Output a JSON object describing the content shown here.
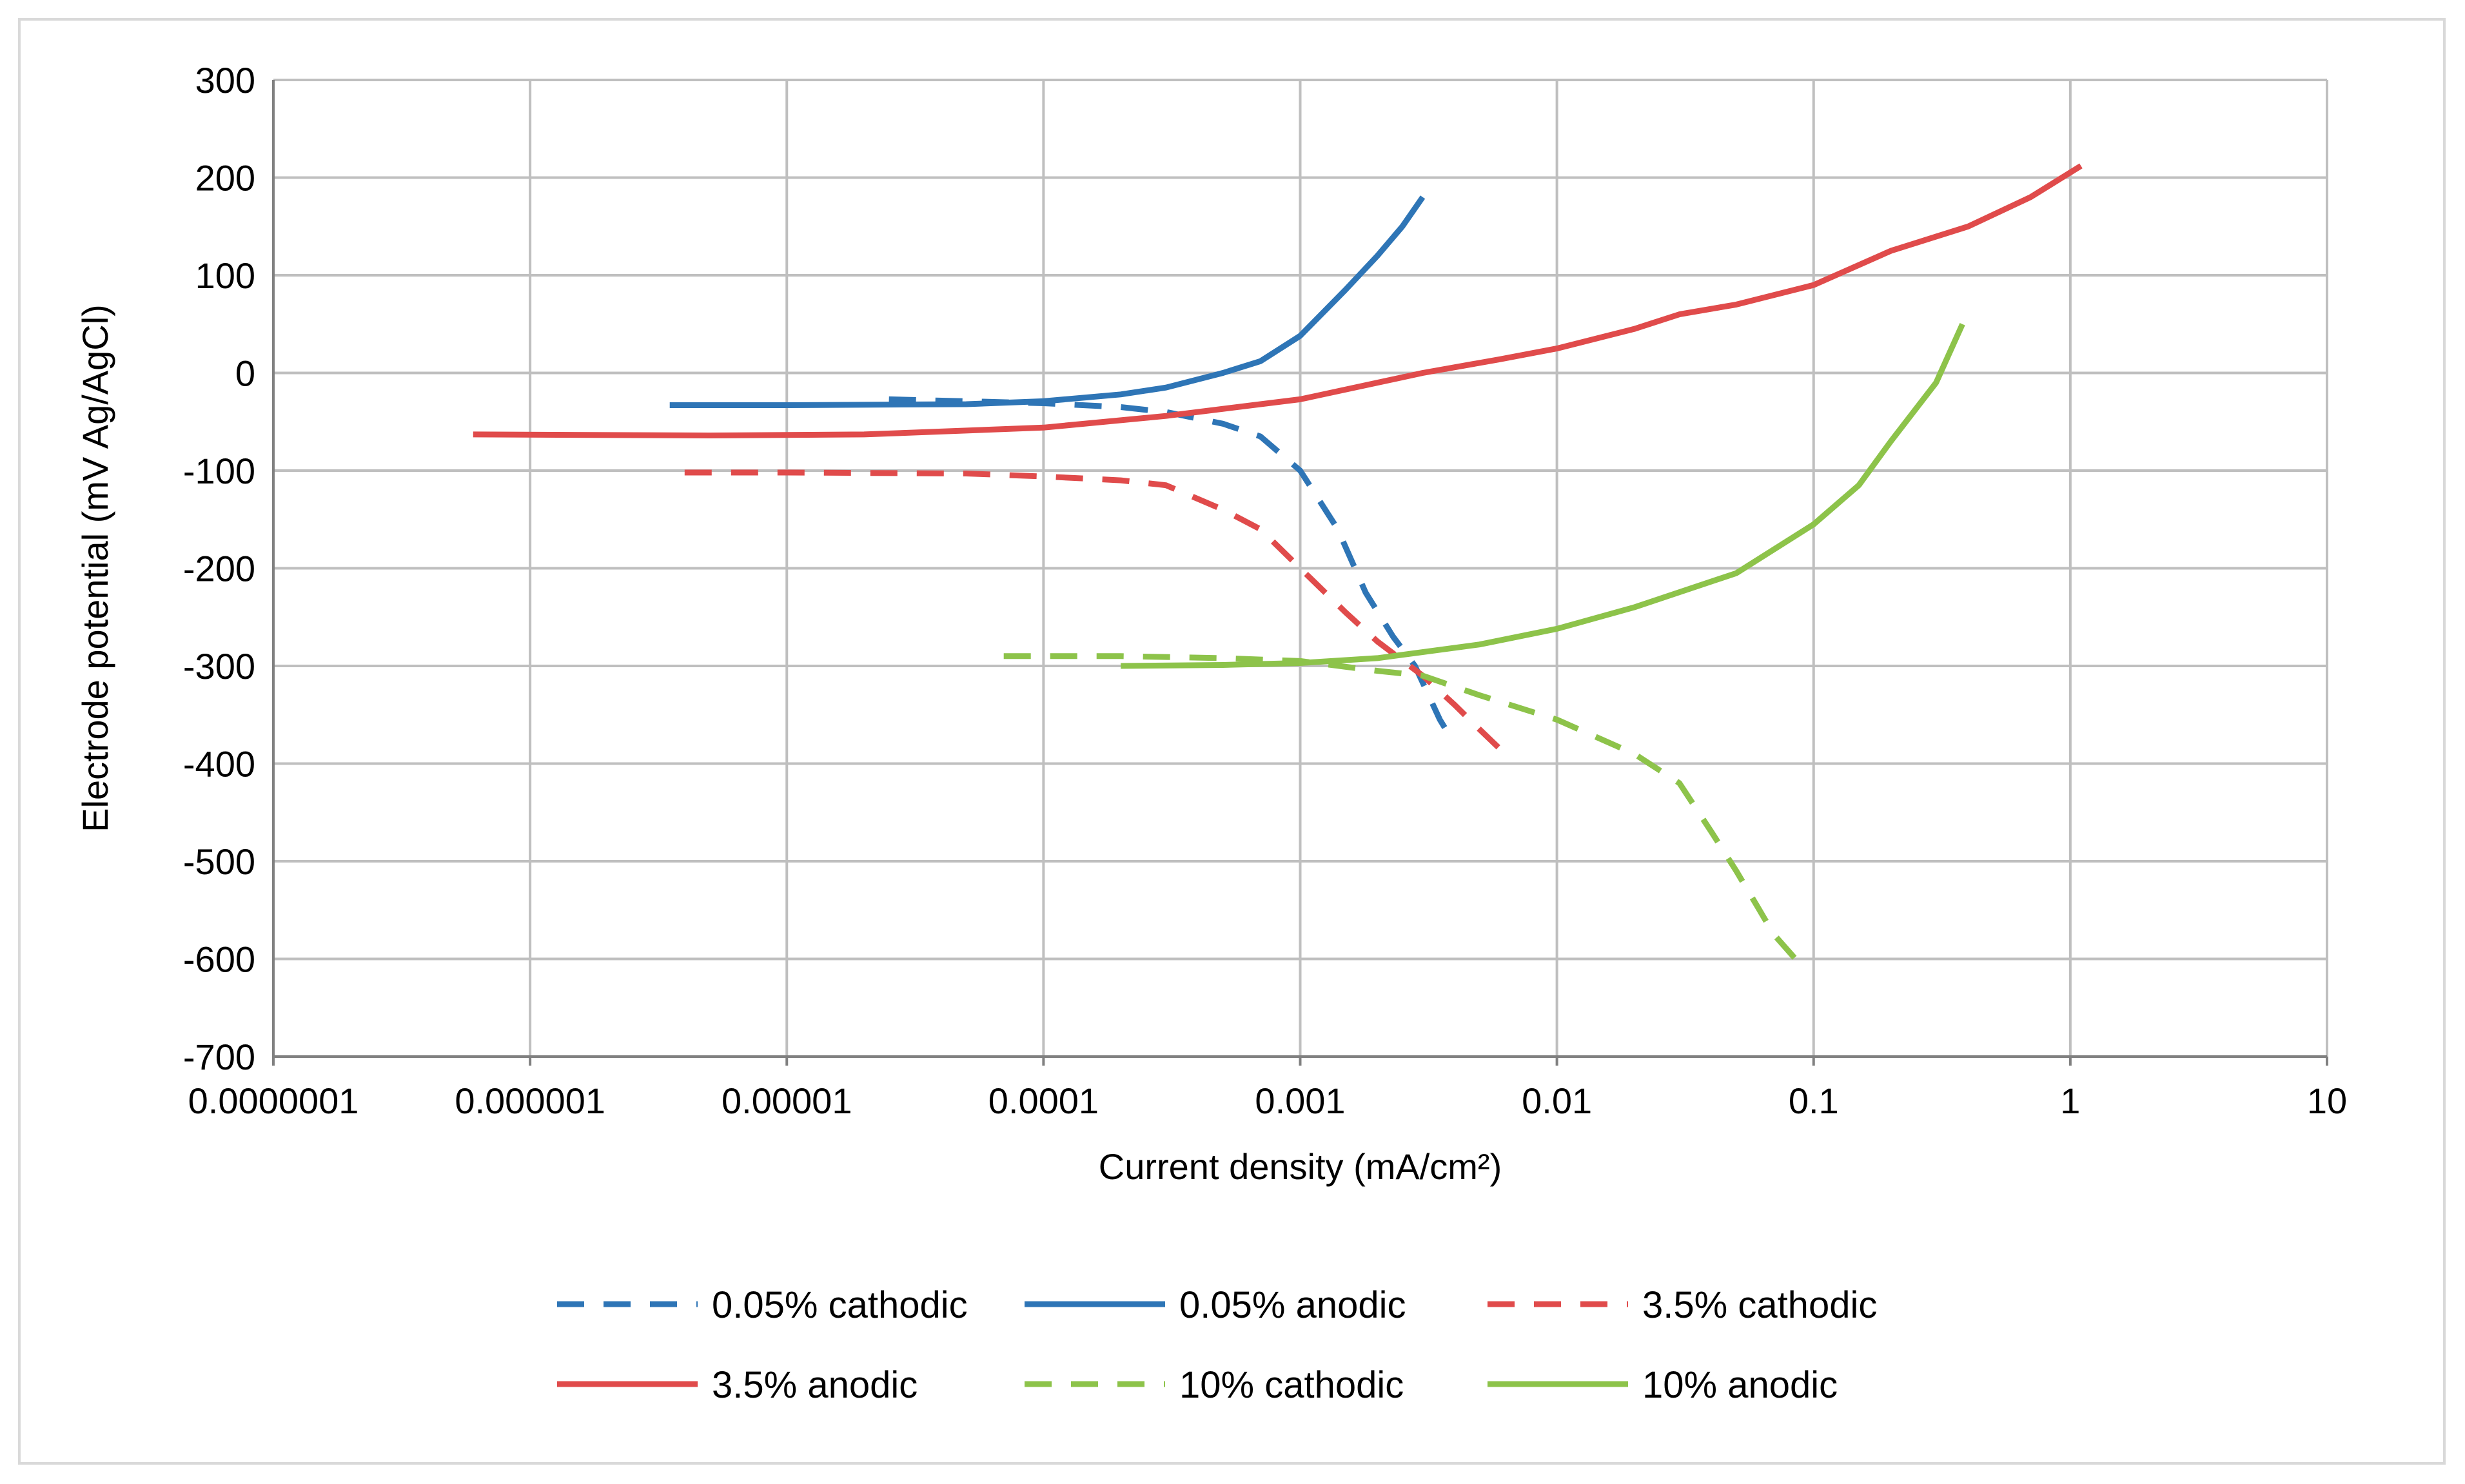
{
  "chart_data": {
    "type": "line",
    "title": "",
    "xlabel": "Current density  (mA/cm²)",
    "ylabel": "Electrode potential  (mV Ag/AgCl)",
    "x_scale": "log",
    "xlim": [
      1e-07,
      10
    ],
    "ylim": [
      -700,
      300
    ],
    "grid": true,
    "legend_position": "bottom",
    "x_tick_labels": [
      "0.0000001",
      "0.000001",
      "0.00001",
      "0.0001",
      "0.001",
      "0.01",
      "0.1",
      "1",
      "10"
    ],
    "y_ticks": [
      300,
      200,
      100,
      0,
      -100,
      -200,
      -300,
      -400,
      -500,
      -600,
      -700
    ],
    "series": [
      {
        "name": "0.05% cathodic",
        "color": "#2e75b6",
        "dash": true,
        "points": [
          [
            2.5e-05,
            -27
          ],
          [
            5e-05,
            -29
          ],
          [
            0.0001,
            -31
          ],
          [
            0.0002,
            -35
          ],
          [
            0.0003,
            -40
          ],
          [
            0.0005,
            -52
          ],
          [
            0.0007,
            -65
          ],
          [
            0.001,
            -100
          ],
          [
            0.0014,
            -160
          ],
          [
            0.0018,
            -225
          ],
          [
            0.0023,
            -270
          ],
          [
            0.0028,
            -300
          ],
          [
            0.0035,
            -355
          ],
          [
            0.004,
            -380
          ]
        ]
      },
      {
        "name": "0.05% anodic",
        "color": "#2e75b6",
        "dash": false,
        "points": [
          [
            3.5e-06,
            -33
          ],
          [
            1e-05,
            -33
          ],
          [
            5e-05,
            -32
          ],
          [
            0.0001,
            -29
          ],
          [
            0.0002,
            -22
          ],
          [
            0.0003,
            -15
          ],
          [
            0.0005,
            0
          ],
          [
            0.0007,
            12
          ],
          [
            0.001,
            38
          ],
          [
            0.0015,
            85
          ],
          [
            0.002,
            120
          ],
          [
            0.0025,
            150
          ],
          [
            0.003,
            180
          ]
        ]
      },
      {
        "name": "3.5% cathodic",
        "color": "#e04b4b",
        "dash": true,
        "points": [
          [
            4e-06,
            -102
          ],
          [
            1e-05,
            -102
          ],
          [
            5e-05,
            -103
          ],
          [
            0.0001,
            -106
          ],
          [
            0.0002,
            -110
          ],
          [
            0.0003,
            -115
          ],
          [
            0.0005,
            -140
          ],
          [
            0.0007,
            -160
          ],
          [
            0.001,
            -200
          ],
          [
            0.0015,
            -245
          ],
          [
            0.002,
            -275
          ],
          [
            0.003,
            -310
          ],
          [
            0.004,
            -340
          ],
          [
            0.005,
            -365
          ],
          [
            0.006,
            -385
          ]
        ]
      },
      {
        "name": "3.5% anodic",
        "color": "#e04b4b",
        "dash": false,
        "points": [
          [
            6e-07,
            -63
          ],
          [
            5e-06,
            -64
          ],
          [
            2e-05,
            -63
          ],
          [
            0.0001,
            -56
          ],
          [
            0.0003,
            -44
          ],
          [
            0.001,
            -27
          ],
          [
            0.003,
            0
          ],
          [
            0.006,
            14
          ],
          [
            0.01,
            25
          ],
          [
            0.02,
            45
          ],
          [
            0.03,
            60
          ],
          [
            0.05,
            70
          ],
          [
            0.1,
            90
          ],
          [
            0.2,
            125
          ],
          [
            0.4,
            150
          ],
          [
            0.7,
            180
          ],
          [
            1.1,
            212
          ]
        ]
      },
      {
        "name": "10% cathodic",
        "color": "#8dc34a",
        "dash": true,
        "points": [
          [
            7e-05,
            -290
          ],
          [
            0.0002,
            -290
          ],
          [
            0.0005,
            -292
          ],
          [
            0.001,
            -295
          ],
          [
            0.002,
            -305
          ],
          [
            0.003,
            -310
          ],
          [
            0.005,
            -330
          ],
          [
            0.01,
            -355
          ],
          [
            0.02,
            -390
          ],
          [
            0.03,
            -420
          ],
          [
            0.04,
            -470
          ],
          [
            0.05,
            -510
          ],
          [
            0.06,
            -545
          ],
          [
            0.07,
            -575
          ],
          [
            0.085,
            -600
          ]
        ]
      },
      {
        "name": "10% anodic",
        "color": "#8dc34a",
        "dash": false,
        "points": [
          [
            0.0002,
            -300
          ],
          [
            0.0005,
            -299
          ],
          [
            0.001,
            -297
          ],
          [
            0.002,
            -292
          ],
          [
            0.005,
            -278
          ],
          [
            0.01,
            -262
          ],
          [
            0.02,
            -240
          ],
          [
            0.05,
            -205
          ],
          [
            0.1,
            -155
          ],
          [
            0.15,
            -115
          ],
          [
            0.2,
            -70
          ],
          [
            0.3,
            -10
          ],
          [
            0.38,
            50
          ]
        ]
      }
    ]
  }
}
